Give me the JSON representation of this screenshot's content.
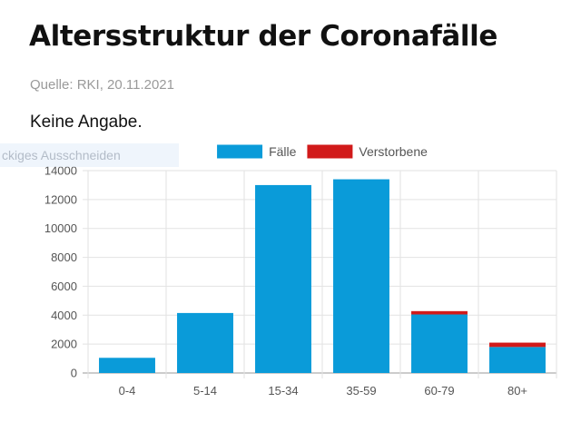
{
  "header": {
    "title": "Altersstruktur der Coronafälle",
    "source": "Quelle: RKI, 20.11.2021",
    "note": "Keine Angabe."
  },
  "overlay": {
    "text": "ckiges Ausschneiden"
  },
  "chart_data": {
    "type": "bar",
    "stacked": true,
    "categories": [
      "0-4",
      "5-14",
      "15-34",
      "35-59",
      "60-79",
      "80+"
    ],
    "series": [
      {
        "name": "Fälle",
        "color": "#0a9bd9",
        "values": [
          1050,
          4150,
          13000,
          13400,
          4050,
          1800
        ]
      },
      {
        "name": "Verstorbene",
        "color": "#d11a1a",
        "values": [
          0,
          0,
          0,
          0,
          230,
          300
        ]
      }
    ],
    "ylim": [
      0,
      14000
    ],
    "yticks": [
      0,
      2000,
      4000,
      6000,
      8000,
      10000,
      12000,
      14000
    ],
    "grid": true,
    "legend_position": "top-center"
  }
}
